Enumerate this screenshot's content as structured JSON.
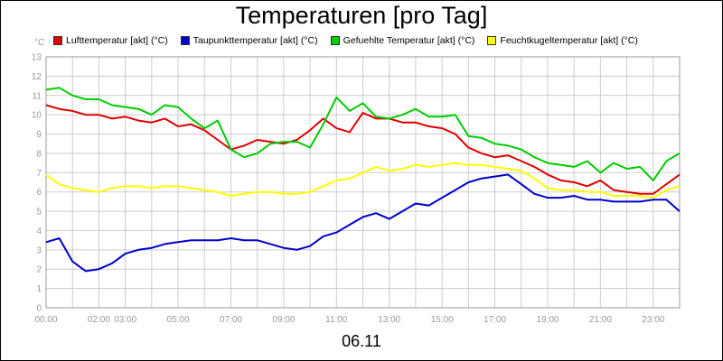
{
  "chart_data": {
    "type": "line",
    "title": "Temperaturen [pro Tag]",
    "xlabel": "06.11",
    "ylabel": "°C",
    "xlim": [
      0,
      24
    ],
    "ylim": [
      0,
      13
    ],
    "grid": true,
    "legend_position": "top",
    "x_ticks": [
      "00:00",
      "01:00",
      "02:00",
      "03:00",
      "04:00",
      "05:00",
      "06:00",
      "07:00",
      "08:00",
      "09:00",
      "10:00",
      "11:00",
      "12:00",
      "13:00",
      "14:00",
      "15:00",
      "16:00",
      "17:00",
      "18:00",
      "19:00",
      "20:00",
      "21:00",
      "22:00",
      "23:00",
      "24:00"
    ],
    "x_tick_labels": [
      {
        "hour": 0,
        "label": "00:00"
      },
      {
        "hour": 2,
        "label": "02:00"
      },
      {
        "hour": 3,
        "label": "03:00"
      },
      {
        "hour": 5,
        "label": "05:00"
      },
      {
        "hour": 7,
        "label": "07:00"
      },
      {
        "hour": 9,
        "label": "09:00"
      },
      {
        "hour": 11,
        "label": "11:00"
      },
      {
        "hour": 13,
        "label": "13:00"
      },
      {
        "hour": 15,
        "label": "15:00"
      },
      {
        "hour": 17,
        "label": "17:00"
      },
      {
        "hour": 19,
        "label": "19:00"
      },
      {
        "hour": 21,
        "label": "21:00"
      },
      {
        "hour": 23,
        "label": "23:00"
      }
    ],
    "y_ticks": [
      0,
      1,
      2,
      3,
      4,
      5,
      6,
      7,
      8,
      9,
      10,
      11,
      12,
      13
    ],
    "x": [
      "00:00",
      "00:30",
      "01:00",
      "01:30",
      "02:00",
      "02:30",
      "03:00",
      "03:30",
      "04:00",
      "04:30",
      "05:00",
      "05:30",
      "06:00",
      "06:30",
      "07:00",
      "07:30",
      "08:00",
      "08:30",
      "09:00",
      "09:30",
      "10:00",
      "10:30",
      "11:00",
      "11:30",
      "12:00",
      "12:30",
      "13:00",
      "13:30",
      "14:00",
      "14:30",
      "15:00",
      "15:30",
      "16:00",
      "16:30",
      "17:00",
      "17:30",
      "18:00",
      "18:30",
      "19:00",
      "19:30",
      "20:00",
      "20:30",
      "21:00",
      "21:30",
      "22:00",
      "22:30",
      "23:00",
      "23:30",
      "24:00"
    ],
    "series": [
      {
        "name": "Lufttemperatur [akt] (°C)",
        "color": "#e00000",
        "values": [
          10.5,
          10.3,
          10.2,
          10.0,
          10.0,
          9.8,
          9.9,
          9.7,
          9.6,
          9.8,
          9.4,
          9.5,
          9.2,
          8.7,
          8.2,
          8.4,
          8.7,
          8.6,
          8.5,
          8.7,
          9.2,
          9.8,
          9.3,
          9.1,
          10.1,
          9.8,
          9.8,
          9.6,
          9.6,
          9.4,
          9.3,
          9.0,
          8.3,
          8.0,
          7.8,
          7.9,
          7.6,
          7.3,
          6.9,
          6.6,
          6.5,
          6.3,
          6.6,
          6.1,
          6.0,
          5.9,
          5.9,
          6.4,
          6.9
        ]
      },
      {
        "name": "Taupunkttemperatur [akt] (°C)",
        "color": "#0000cc",
        "values": [
          3.4,
          3.6,
          2.4,
          1.9,
          2.0,
          2.3,
          2.8,
          3.0,
          3.1,
          3.3,
          3.4,
          3.5,
          3.5,
          3.5,
          3.6,
          3.5,
          3.5,
          3.3,
          3.1,
          3.0,
          3.2,
          3.7,
          3.9,
          4.3,
          4.7,
          4.9,
          4.6,
          5.0,
          5.4,
          5.3,
          5.7,
          6.1,
          6.5,
          6.7,
          6.8,
          6.9,
          6.4,
          5.9,
          5.7,
          5.7,
          5.8,
          5.6,
          5.6,
          5.5,
          5.5,
          5.5,
          5.6,
          5.6,
          5.0
        ]
      },
      {
        "name": "Gefuehlte Temperatur [akt] (°C)",
        "color": "#00cc00",
        "values": [
          11.3,
          11.4,
          11.0,
          10.8,
          10.8,
          10.5,
          10.4,
          10.3,
          10.0,
          10.5,
          10.4,
          9.8,
          9.3,
          9.7,
          8.2,
          7.8,
          8.0,
          8.5,
          8.6,
          8.6,
          8.3,
          9.5,
          10.9,
          10.2,
          10.6,
          9.9,
          9.8,
          10.0,
          10.3,
          9.9,
          9.9,
          10.0,
          8.9,
          8.8,
          8.5,
          8.4,
          8.2,
          7.8,
          7.5,
          7.4,
          7.3,
          7.6,
          7.0,
          7.5,
          7.2,
          7.3,
          6.6,
          7.6,
          8.0
        ]
      },
      {
        "name": "Feuchtkugeltemperatur [akt] (°C)",
        "color": "#ffff00",
        "values": [
          6.9,
          6.4,
          6.2,
          6.1,
          6.0,
          6.2,
          6.3,
          6.3,
          6.2,
          6.3,
          6.3,
          6.2,
          6.1,
          6.0,
          5.8,
          5.9,
          6.0,
          6.0,
          5.9,
          5.9,
          6.0,
          6.3,
          6.6,
          6.7,
          7.0,
          7.3,
          7.1,
          7.2,
          7.4,
          7.3,
          7.4,
          7.5,
          7.4,
          7.4,
          7.3,
          7.2,
          7.1,
          6.7,
          6.2,
          6.1,
          6.1,
          6.0,
          6.0,
          5.8,
          5.8,
          5.8,
          5.7,
          6.1,
          6.3
        ]
      }
    ]
  }
}
